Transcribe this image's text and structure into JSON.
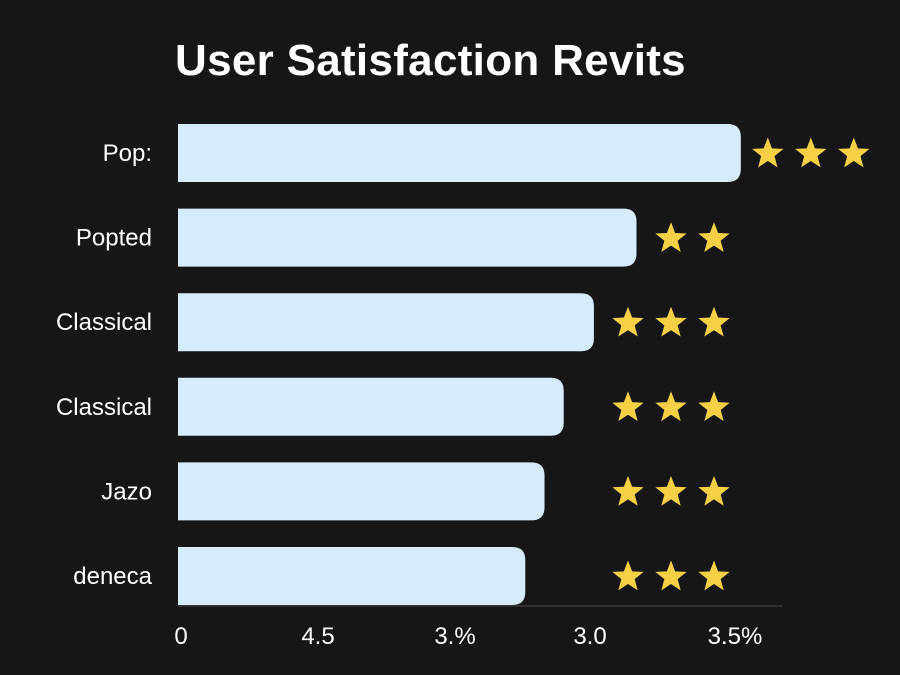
{
  "colors": {
    "background": "#161616",
    "bar": "#d6ebfb",
    "star": "#f7d046",
    "text": "#ffffff",
    "axis": "#3a3a3a"
  },
  "chart_data": {
    "type": "bar",
    "orientation": "horizontal",
    "title": "User Satisfaction Revits",
    "xlabel": "",
    "ylabel": "",
    "categories": [
      "Pop:",
      "Popted",
      "Classical",
      "Classical",
      "Jazo",
      "deneca"
    ],
    "values": [
      4.1,
      3.34,
      3.03,
      2.81,
      2.67,
      2.53
    ],
    "ratings": [
      3,
      2,
      3,
      3,
      3,
      3
    ],
    "x_ticks": [
      "0",
      "4.5",
      "3.%",
      "3.0",
      "3.5%"
    ],
    "xlim": [
      0,
      4.4
    ],
    "grid": false,
    "legend": "none"
  }
}
